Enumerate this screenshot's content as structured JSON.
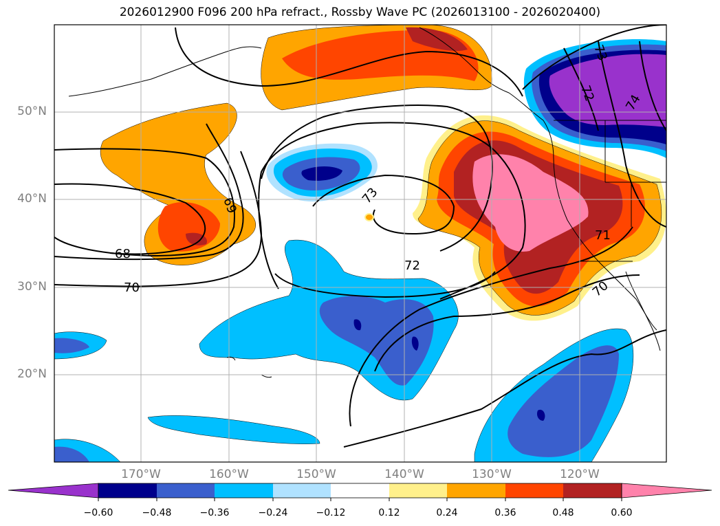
{
  "title": "2026012900 F096 200 hPa refract., Rossby Wave PC (2026013100 - 2026020400)",
  "map": {
    "lat_ticks": [
      "50°N",
      "40°N",
      "30°N",
      "20°N"
    ],
    "lon_ticks": [
      "170°W",
      "160°W",
      "150°W",
      "140°W",
      "130°W",
      "120°W"
    ],
    "grid": true,
    "contour_labels": [
      "73",
      "72",
      "74",
      "69",
      "73",
      "68",
      "72",
      "70",
      "71",
      "70"
    ]
  },
  "colorbar": {
    "ticks": [
      "−0.60",
      "−0.48",
      "−0.36",
      "−0.24",
      "−0.12",
      "0.12",
      "0.24",
      "0.36",
      "0.48",
      "0.60"
    ],
    "colors": [
      "#9932cc",
      "#00008b",
      "#3a5fcd",
      "#00bfff",
      "#b0e2ff",
      "#ffffff",
      "#fff08b",
      "#ffa500",
      "#ff4500",
      "#b22222",
      "#ff82ab"
    ]
  },
  "colors": {
    "neg_strong": "#9932cc",
    "neg_dark": "#00008b",
    "neg_mid": "#3a5fcd",
    "neg_light": "#00bfff",
    "neg_pale": "#b0e2ff",
    "pos_pale": "#fff08b",
    "pos_light": "#ffa500",
    "pos_mid": "#ff4500",
    "pos_dark": "#b22222",
    "pos_strong": "#ff82ab",
    "tick_text": "#7f7f7f"
  }
}
